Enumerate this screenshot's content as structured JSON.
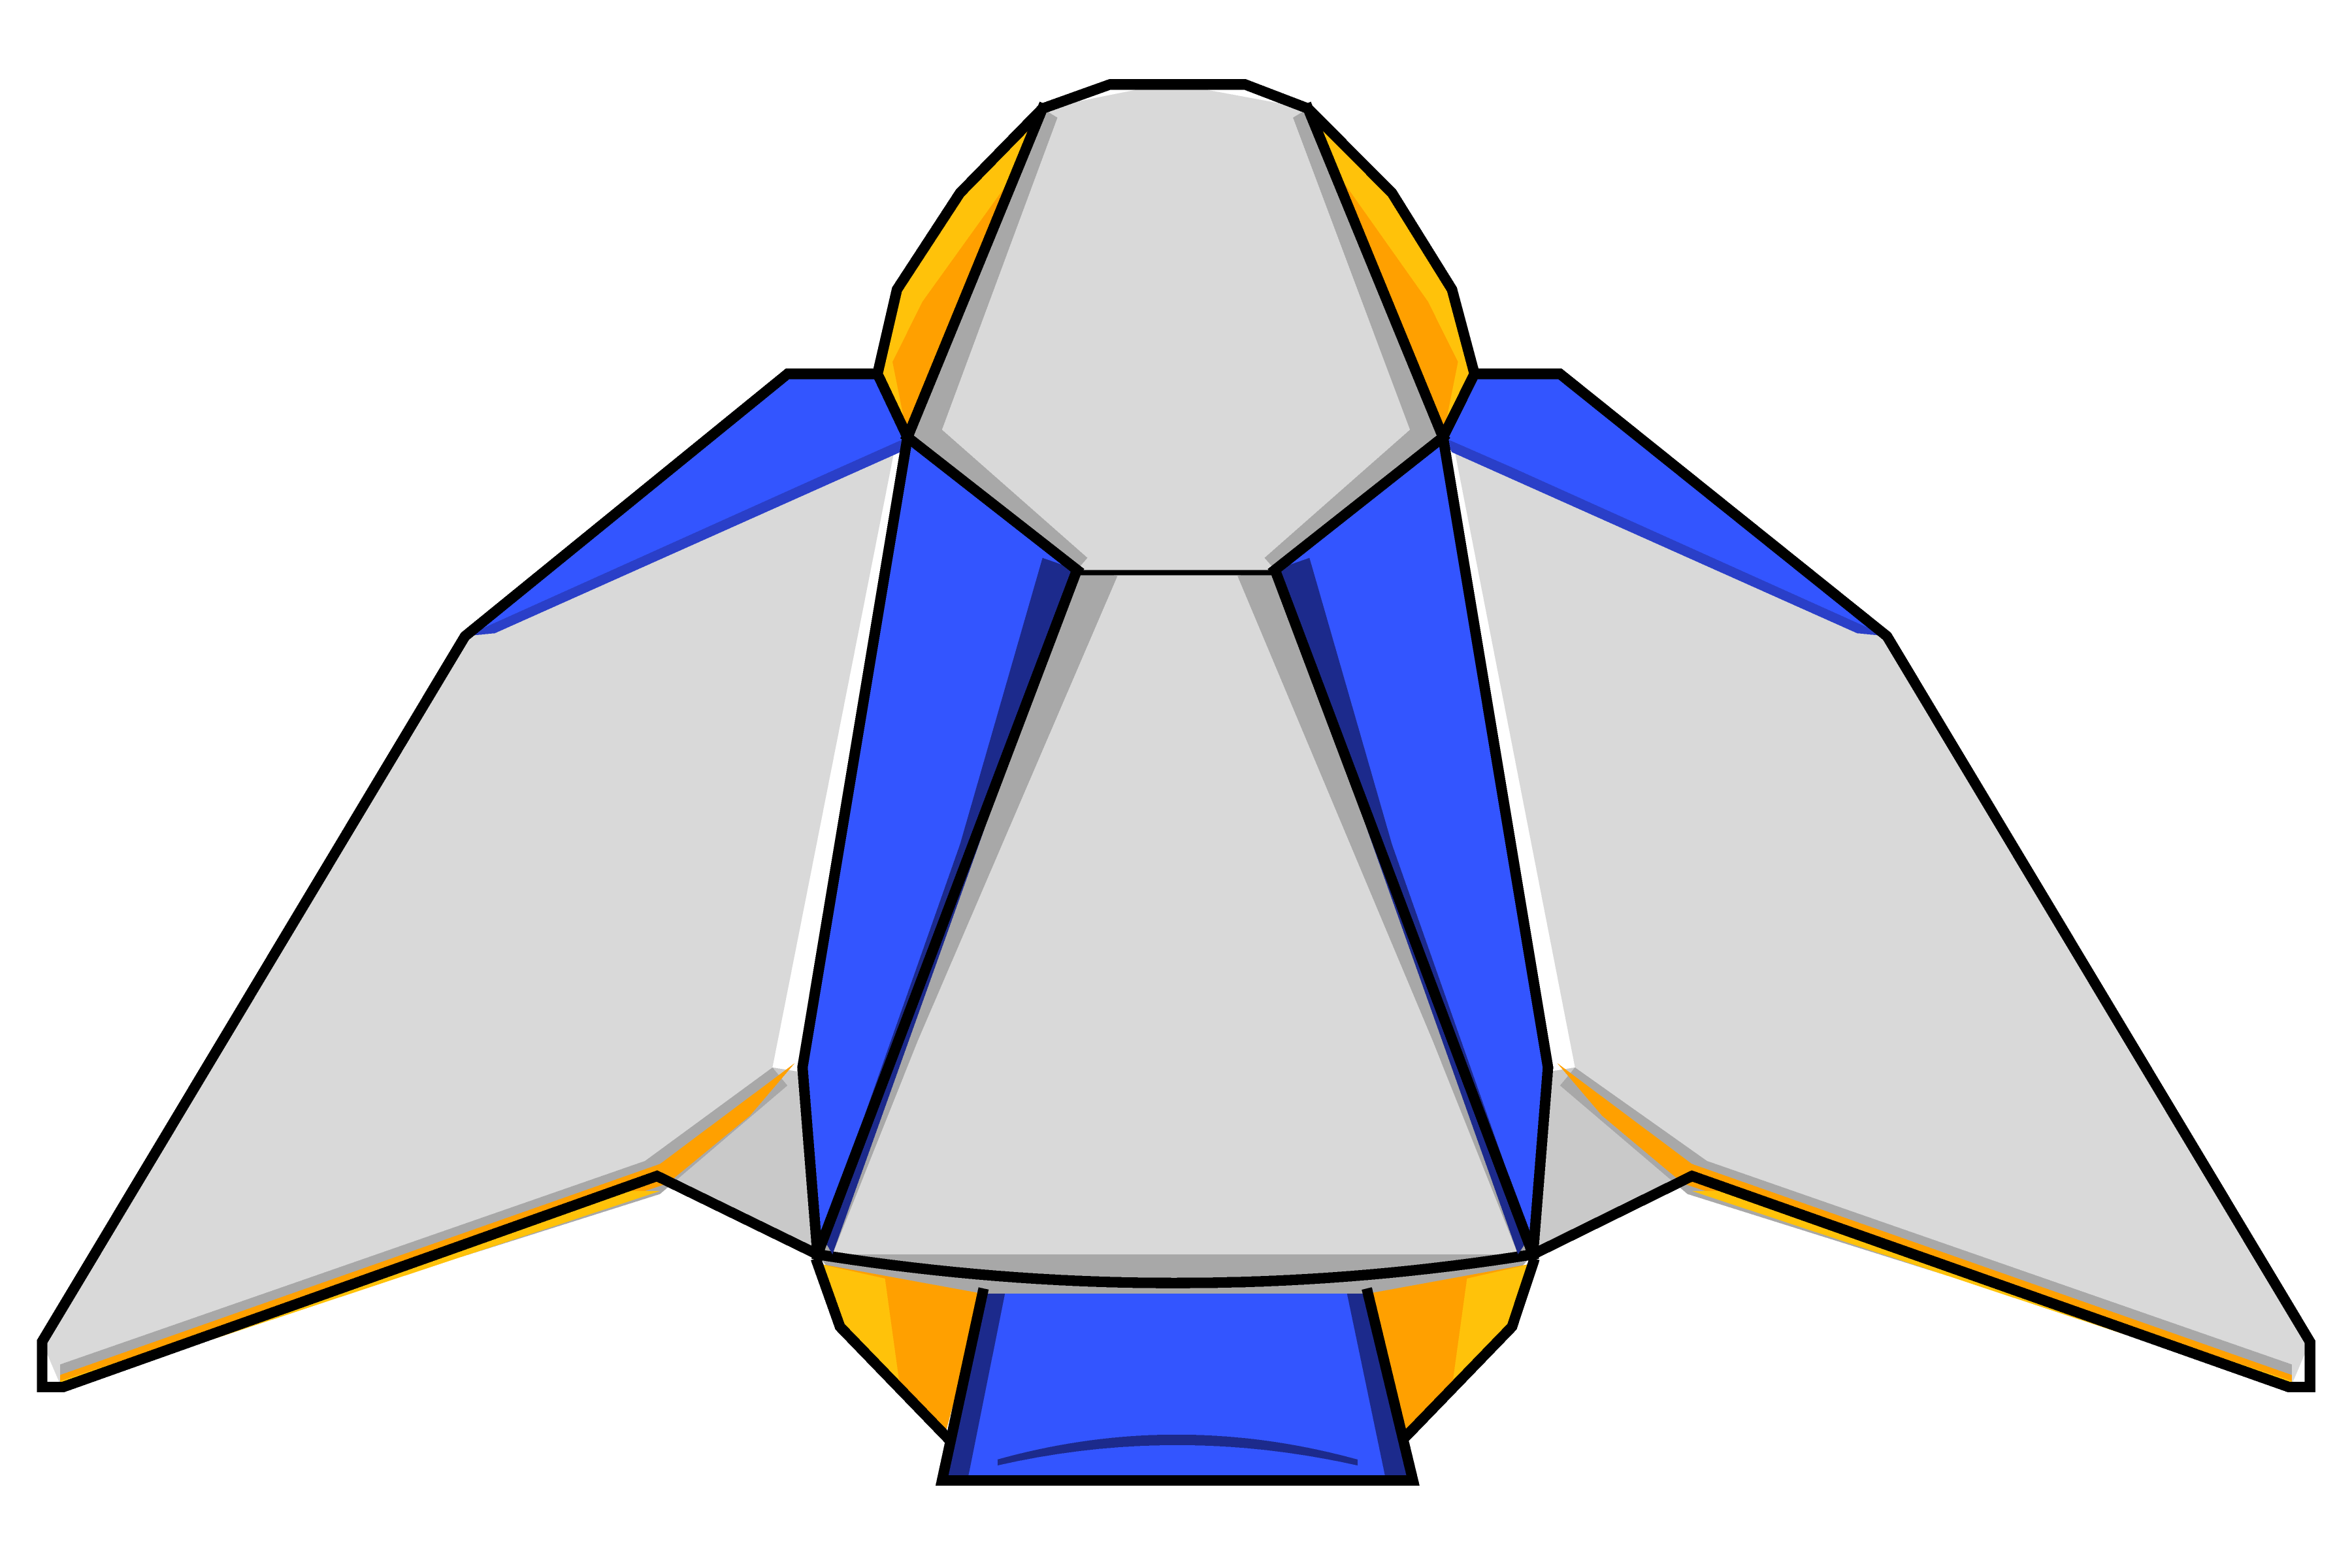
{
  "sprite": {
    "name": "spaceship",
    "view": "top-down",
    "style": "pixel-art"
  },
  "palette": {
    "background": "#ffffff",
    "hull_light": "#d9d9d9",
    "hull_shadow": "#a8a8a8",
    "accent_blue": "#3355ff",
    "accent_blue_dark": "#1c2a8c",
    "accent_orange": "#ffa000",
    "accent_yellow": "#ffc20a",
    "outline": "#000000"
  },
  "parts": [
    "nose-cockpit",
    "main-fuselage",
    "left-wing",
    "right-wing",
    "left-blue-strake",
    "right-blue-strake",
    "left-wing-root-blue",
    "right-wing-root-blue",
    "left-orange-trim",
    "right-orange-trim",
    "left-engine-pod",
    "right-engine-pod",
    "rear-thruster"
  ]
}
